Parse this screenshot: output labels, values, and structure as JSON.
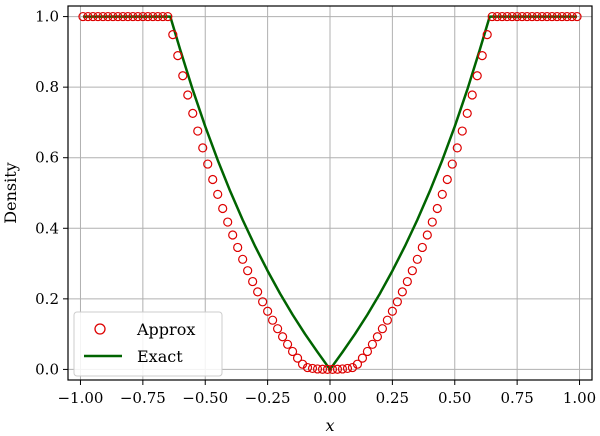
{
  "chart_data": {
    "type": "line",
    "xlabel": "x",
    "ylabel": "Density",
    "xlim": [
      -1.05,
      1.05
    ],
    "ylim": [
      -0.03,
      1.03
    ],
    "grid": true,
    "legend_position": "lower-left",
    "x_ticks": [
      "−1.00",
      "−0.75",
      "−0.50",
      "−0.25",
      "0.00",
      "0.25",
      "0.50",
      "0.75",
      "1.00"
    ],
    "x_tick_values": [
      -1.0,
      -0.75,
      -0.5,
      -0.25,
      0.0,
      0.25,
      0.5,
      0.75,
      1.0
    ],
    "y_ticks": [
      "0.0",
      "0.2",
      "0.4",
      "0.6",
      "0.8",
      "1.0"
    ],
    "y_tick_values": [
      0.0,
      0.2,
      0.4,
      0.6,
      0.8,
      1.0
    ],
    "series": [
      {
        "name": "Approx",
        "style": "markers",
        "color": "#dd0000",
        "x": [
          -0.99,
          -0.97,
          -0.95,
          -0.93,
          -0.91,
          -0.89,
          -0.87,
          -0.85,
          -0.83,
          -0.81,
          -0.79,
          -0.77,
          -0.75,
          -0.73,
          -0.71,
          -0.69,
          -0.67,
          -0.65,
          -0.63,
          -0.61,
          -0.59,
          -0.57,
          -0.55,
          -0.53,
          -0.51,
          -0.49,
          -0.47,
          -0.45,
          -0.43,
          -0.41,
          -0.39,
          -0.37,
          -0.35,
          -0.33,
          -0.31,
          -0.29,
          -0.27,
          -0.25,
          -0.23,
          -0.21,
          -0.19,
          -0.17,
          -0.15,
          -0.13,
          -0.11,
          -0.09,
          -0.07,
          -0.05,
          -0.03,
          -0.01,
          0.01,
          0.03,
          0.05,
          0.07,
          0.09,
          0.11,
          0.13,
          0.15,
          0.17,
          0.19,
          0.21,
          0.23,
          0.25,
          0.27,
          0.29,
          0.31,
          0.33,
          0.35,
          0.37,
          0.39,
          0.41,
          0.43,
          0.45,
          0.47,
          0.49,
          0.51,
          0.53,
          0.55,
          0.57,
          0.59,
          0.61,
          0.63,
          0.65,
          0.67,
          0.69,
          0.71,
          0.73,
          0.75,
          0.77,
          0.79,
          0.81,
          0.83,
          0.85,
          0.87,
          0.89,
          0.91,
          0.93,
          0.95,
          0.97,
          0.99
        ],
        "y": [
          1.0,
          1.0,
          1.0,
          1.0,
          1.0,
          1.0,
          1.0,
          1.0,
          1.0,
          1.0,
          1.0,
          1.0,
          1.0,
          1.0,
          1.0,
          1.0,
          1.0,
          1.0,
          0.9488,
          0.8893,
          0.8323,
          0.7778,
          0.7256,
          0.6756,
          0.6278,
          0.582,
          0.5382,
          0.4962,
          0.4561,
          0.4177,
          0.3809,
          0.3457,
          0.312,
          0.2798,
          0.249,
          0.2197,
          0.1916,
          0.1649,
          0.1395,
          0.1154,
          0.0926,
          0.0711,
          0.0509,
          0.0321,
          0.0148,
          0.0052,
          0.0028,
          0.0013,
          0.0005,
          0.0001,
          0.0001,
          0.0005,
          0.0013,
          0.0028,
          0.0052,
          0.0148,
          0.0321,
          0.0509,
          0.0711,
          0.0926,
          0.1154,
          0.1395,
          0.1649,
          0.1916,
          0.2197,
          0.249,
          0.2798,
          0.312,
          0.3457,
          0.3809,
          0.4177,
          0.4561,
          0.4962,
          0.5382,
          0.582,
          0.6278,
          0.6756,
          0.7256,
          0.7778,
          0.8323,
          0.8893,
          0.9488,
          1.0,
          1.0,
          1.0,
          1.0,
          1.0,
          1.0,
          1.0,
          1.0,
          1.0,
          1.0,
          1.0,
          1.0,
          1.0,
          1.0,
          1.0,
          1.0,
          1.0,
          1.0
        ]
      },
      {
        "name": "Exact",
        "style": "line",
        "color": "#006400",
        "x": [
          -0.99,
          -0.64,
          -0.6,
          -0.55,
          -0.5,
          -0.45,
          -0.4,
          -0.35,
          -0.3,
          -0.25,
          -0.2,
          -0.15,
          -0.1,
          -0.05,
          0.0,
          0.05,
          0.1,
          0.15,
          0.2,
          0.25,
          0.3,
          0.35,
          0.4,
          0.45,
          0.5,
          0.55,
          0.6,
          0.64,
          0.99
        ],
        "y": [
          1.0,
          1.0,
          0.9053,
          0.7924,
          0.6887,
          0.5932,
          0.5052,
          0.4239,
          0.3488,
          0.2793,
          0.2149,
          0.1553,
          0.1001,
          0.0491,
          0.0,
          0.0491,
          0.1001,
          0.1553,
          0.2149,
          0.2793,
          0.3488,
          0.4239,
          0.5052,
          0.5932,
          0.6887,
          0.7924,
          0.9053,
          1.0,
          1.0
        ]
      }
    ]
  }
}
